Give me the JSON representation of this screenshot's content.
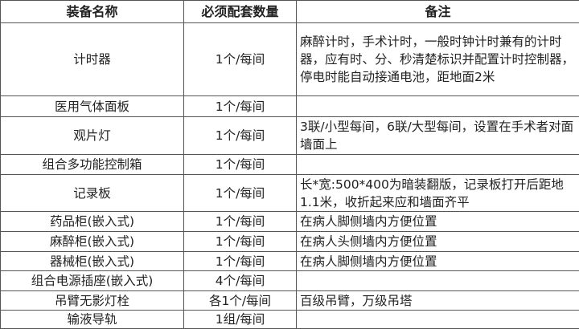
{
  "table": {
    "header": [
      "装备名称",
      "必须配套数量",
      "备注"
    ],
    "rows": [
      {
        "name": "计时器",
        "quantity": "1个/每间",
        "note": "麻醉计时，手术计时，一般时钟计时兼有的计时器，应有时、分、秒清楚标识并配置计时控制器，停电时能自动接通电池，距地面2米"
      },
      {
        "name": "医用气体面板",
        "quantity": "1个/每间"
      },
      {
        "name": "观片灯",
        "quantity": "1个/每间",
        "note": "3联/小型每间，6联/大型每间，设置在手术者对面墙面上"
      },
      {
        "name": "组合多功能控制箱",
        "quantity": "1个/每间"
      },
      {
        "name": "记录板",
        "quantity": "1个/每间",
        "note": "长*宽:500*400为暗装翻版，记录板打开后距地1.1米，收折起来应和墙面齐平"
      },
      {
        "name": "药品柜(嵌入式)",
        "quantity": "1个/每间",
        "note": "在病人脚侧墙内方便位置"
      },
      {
        "name": "麻醉柜(嵌入式)",
        "quantity": "1个/每间",
        "note": "在病人头侧墙内方便位置"
      },
      {
        "name": "器械柜(嵌入式)",
        "quantity": "1个/每间",
        "note": "在病人脚侧墙内方便位置"
      },
      {
        "name": "组合电源插座(嵌入式)",
        "quantity": "4个/每间"
      },
      {
        "name": "吊臂无影灯栓",
        "quantity": "各1个/每间",
        "note": "百级吊臂，万级吊塔"
      },
      {
        "name": "输液导轨",
        "quantity": "1组/每间"
      }
    ]
  }
}
